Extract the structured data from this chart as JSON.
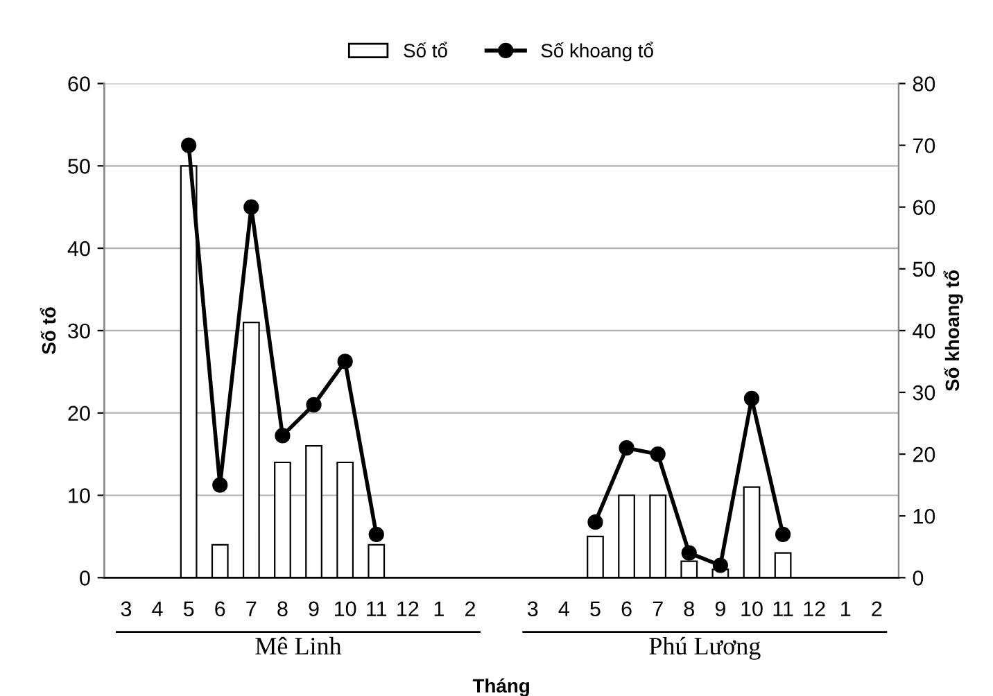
{
  "chart_data": {
    "type": "bar",
    "xlabel": "Tháng",
    "ylabel": "Số tổ",
    "y2label": "Số khoang tổ",
    "categories": [
      "3",
      "4",
      "5",
      "6",
      "7",
      "8",
      "9",
      "10",
      "11",
      "12",
      "1",
      "2",
      null,
      "3",
      "4",
      "5",
      "6",
      "7",
      "8",
      "9",
      "10",
      "11",
      "12",
      "1",
      "2"
    ],
    "series": [
      {
        "name": "Số tổ",
        "color": "#ffffff",
        "values": [
          null,
          null,
          50,
          4,
          31,
          14,
          16,
          14,
          4,
          null,
          null,
          null,
          null,
          null,
          null,
          5,
          10,
          10,
          2,
          1,
          11,
          3,
          null,
          null,
          null
        ]
      },
      {
        "name": "Số khoang tổ",
        "type": "line",
        "axis": "y2",
        "color": "#000000",
        "marker": "circle",
        "values": [
          null,
          null,
          70,
          15,
          60,
          23,
          28,
          35,
          7,
          null,
          null,
          null,
          null,
          null,
          null,
          9,
          21,
          20,
          4,
          2,
          29,
          7,
          null,
          null,
          null
        ]
      }
    ],
    "ylim": [
      0,
      60
    ],
    "yticks": [
      0,
      10,
      20,
      30,
      40,
      50,
      60
    ],
    "y2lim": [
      0,
      80
    ],
    "y2ticks": [
      0,
      10,
      20,
      30,
      40,
      50,
      60,
      70,
      80
    ],
    "grid": "y",
    "legend": "top",
    "annotations": [
      "Mê Linh",
      "Phú Lương"
    ]
  }
}
